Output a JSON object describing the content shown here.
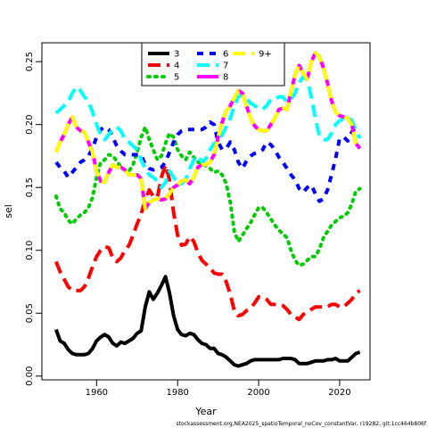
{
  "chart_data": {
    "type": "line",
    "xlabel": "Year",
    "ylabel": "sel",
    "xlim": [
      1946.5,
      2027.5
    ],
    "ylim": [
      -0.003,
      0.265
    ],
    "x_ticks": [
      1960,
      1980,
      2000,
      2020
    ],
    "y_ticks": [
      0.0,
      0.05,
      0.1,
      0.15,
      0.2,
      0.25
    ],
    "y_tick_labels": [
      "0.00",
      "0.05",
      "0.10",
      "0.15",
      "0.20",
      "0.25"
    ],
    "legend_position": "top-center",
    "grid": false,
    "footnote": "stockassessment.org,NEA2025_spatioTemporal_noCov_constantVar, r19282, git:1cc464b806f",
    "series": [
      {
        "name": "3",
        "color": "#000000",
        "dash": "solid",
        "x": [
          1950,
          1951,
          1952,
          1953,
          1954,
          1955,
          1956,
          1957,
          1958,
          1959,
          1960,
          1961,
          1962,
          1963,
          1964,
          1965,
          1966,
          1967,
          1968,
          1969,
          1970,
          1971,
          1972,
          1973,
          1974,
          1975,
          1976,
          1977,
          1978,
          1979,
          1980,
          1981,
          1982,
          1983,
          1984,
          1985,
          1986,
          1987,
          1988,
          1989,
          1990,
          1991,
          1992,
          1993,
          1994,
          1995,
          1996,
          1997,
          1998,
          1999,
          2000,
          2001,
          2002,
          2003,
          2004,
          2005,
          2006,
          2007,
          2008,
          2009,
          2010,
          2011,
          2012,
          2013,
          2014,
          2015,
          2016,
          2017,
          2018,
          2019,
          2020,
          2021,
          2022,
          2023,
          2024,
          2025
        ],
        "y": [
          0.037,
          0.028,
          0.026,
          0.021,
          0.018,
          0.017,
          0.017,
          0.017,
          0.018,
          0.022,
          0.028,
          0.031,
          0.033,
          0.031,
          0.026,
          0.024,
          0.027,
          0.026,
          0.028,
          0.03,
          0.034,
          0.036,
          0.055,
          0.067,
          0.061,
          0.066,
          0.072,
          0.079,
          0.066,
          0.048,
          0.037,
          0.033,
          0.032,
          0.034,
          0.033,
          0.029,
          0.026,
          0.025,
          0.022,
          0.022,
          0.018,
          0.017,
          0.015,
          0.012,
          0.009,
          0.008,
          0.009,
          0.01,
          0.012,
          0.013,
          0.013,
          0.013,
          0.013,
          0.013,
          0.013,
          0.013,
          0.014,
          0.014,
          0.014,
          0.013,
          0.01,
          0.01,
          0.01,
          0.011,
          0.012,
          0.012,
          0.012,
          0.013,
          0.013,
          0.014,
          0.012,
          0.012,
          0.012,
          0.015,
          0.018,
          0.019
        ]
      },
      {
        "name": "4",
        "color": "#ff0000",
        "dash": "long",
        "x": [
          1950,
          1951,
          1952,
          1953,
          1954,
          1955,
          1956,
          1957,
          1958,
          1959,
          1960,
          1961,
          1962,
          1963,
          1964,
          1965,
          1966,
          1967,
          1968,
          1969,
          1970,
          1971,
          1972,
          1973,
          1974,
          1975,
          1976,
          1977,
          1978,
          1979,
          1980,
          1981,
          1982,
          1983,
          1984,
          1985,
          1986,
          1987,
          1988,
          1989,
          1990,
          1991,
          1992,
          1993,
          1994,
          1995,
          1996,
          1997,
          1998,
          1999,
          2000,
          2001,
          2002,
          2003,
          2004,
          2005,
          2006,
          2007,
          2008,
          2009,
          2010,
          2011,
          2012,
          2013,
          2014,
          2015,
          2016,
          2017,
          2018,
          2019,
          2020,
          2021,
          2022,
          2023,
          2024,
          2025
        ],
        "y": [
          0.091,
          0.083,
          0.077,
          0.071,
          0.068,
          0.068,
          0.068,
          0.071,
          0.078,
          0.087,
          0.095,
          0.1,
          0.103,
          0.102,
          0.094,
          0.091,
          0.094,
          0.1,
          0.104,
          0.112,
          0.121,
          0.129,
          0.14,
          0.148,
          0.143,
          0.142,
          0.158,
          0.168,
          0.156,
          0.13,
          0.112,
          0.104,
          0.105,
          0.111,
          0.107,
          0.098,
          0.092,
          0.089,
          0.086,
          0.082,
          0.081,
          0.081,
          0.075,
          0.065,
          0.052,
          0.048,
          0.049,
          0.052,
          0.054,
          0.058,
          0.063,
          0.063,
          0.061,
          0.057,
          0.057,
          0.057,
          0.056,
          0.053,
          0.049,
          0.047,
          0.045,
          0.049,
          0.051,
          0.053,
          0.055,
          0.055,
          0.055,
          0.055,
          0.057,
          0.057,
          0.055,
          0.055,
          0.058,
          0.061,
          0.066,
          0.068
        ]
      },
      {
        "name": "5",
        "color": "#00cd00",
        "dash": "dotted",
        "x": [
          1950,
          1951,
          1952,
          1953,
          1954,
          1955,
          1956,
          1957,
          1958,
          1959,
          1960,
          1961,
          1962,
          1963,
          1964,
          1965,
          1966,
          1967,
          1968,
          1969,
          1970,
          1971,
          1972,
          1973,
          1974,
          1975,
          1976,
          1977,
          1978,
          1979,
          1980,
          1981,
          1982,
          1983,
          1984,
          1985,
          1986,
          1987,
          1988,
          1989,
          1990,
          1991,
          1992,
          1993,
          1994,
          1995,
          1996,
          1997,
          1998,
          1999,
          2000,
          2001,
          2002,
          2003,
          2004,
          2005,
          2006,
          2007,
          2008,
          2009,
          2010,
          2011,
          2012,
          2013,
          2014,
          2015,
          2016,
          2017,
          2018,
          2019,
          2020,
          2021,
          2022,
          2023,
          2024,
          2025
        ],
        "y": [
          0.143,
          0.133,
          0.13,
          0.124,
          0.121,
          0.125,
          0.128,
          0.13,
          0.134,
          0.142,
          0.158,
          0.17,
          0.172,
          0.176,
          0.175,
          0.171,
          0.166,
          0.164,
          0.163,
          0.168,
          0.178,
          0.19,
          0.198,
          0.188,
          0.18,
          0.172,
          0.175,
          0.185,
          0.193,
          0.19,
          0.18,
          0.175,
          0.172,
          0.178,
          0.174,
          0.17,
          0.17,
          0.167,
          0.165,
          0.162,
          0.163,
          0.16,
          0.153,
          0.138,
          0.115,
          0.107,
          0.112,
          0.117,
          0.122,
          0.128,
          0.134,
          0.134,
          0.13,
          0.125,
          0.12,
          0.116,
          0.113,
          0.11,
          0.1,
          0.092,
          0.088,
          0.089,
          0.092,
          0.095,
          0.095,
          0.101,
          0.11,
          0.115,
          0.12,
          0.123,
          0.126,
          0.127,
          0.13,
          0.137,
          0.147,
          0.149
        ]
      },
      {
        "name": "6",
        "color": "#0000ff",
        "dash": "dashed",
        "x": [
          1950,
          1951,
          1952,
          1953,
          1954,
          1955,
          1956,
          1957,
          1958,
          1959,
          1960,
          1961,
          1962,
          1963,
          1964,
          1965,
          1966,
          1967,
          1968,
          1969,
          1970,
          1971,
          1972,
          1973,
          1974,
          1975,
          1976,
          1977,
          1978,
          1979,
          1980,
          1981,
          1982,
          1983,
          1984,
          1985,
          1986,
          1987,
          1988,
          1989,
          1990,
          1991,
          1992,
          1993,
          1994,
          1995,
          1996,
          1997,
          1998,
          1999,
          2000,
          2001,
          2002,
          2003,
          2004,
          2005,
          2006,
          2007,
          2008,
          2009,
          2010,
          2011,
          2012,
          2013,
          2014,
          2015,
          2016,
          2017,
          2018,
          2019,
          2020,
          2021,
          2022,
          2023,
          2024,
          2025
        ],
        "y": [
          0.17,
          0.166,
          0.163,
          0.158,
          0.162,
          0.166,
          0.17,
          0.172,
          0.175,
          0.181,
          0.19,
          0.196,
          0.198,
          0.196,
          0.19,
          0.183,
          0.179,
          0.176,
          0.176,
          0.176,
          0.176,
          0.176,
          0.168,
          0.165,
          0.164,
          0.165,
          0.166,
          0.17,
          0.178,
          0.186,
          0.192,
          0.195,
          0.196,
          0.196,
          0.196,
          0.196,
          0.196,
          0.198,
          0.202,
          0.2,
          0.186,
          0.18,
          0.181,
          0.186,
          0.18,
          0.17,
          0.165,
          0.171,
          0.175,
          0.177,
          0.178,
          0.18,
          0.186,
          0.184,
          0.18,
          0.174,
          0.17,
          0.165,
          0.16,
          0.156,
          0.149,
          0.146,
          0.15,
          0.152,
          0.145,
          0.139,
          0.141,
          0.148,
          0.16,
          0.173,
          0.189,
          0.19,
          0.187,
          0.194,
          0.198,
          0.198
        ]
      },
      {
        "name": "7",
        "color": "#00ffff",
        "dash": "longdash",
        "x": [
          1950,
          1951,
          1952,
          1953,
          1954,
          1955,
          1956,
          1957,
          1958,
          1959,
          1960,
          1961,
          1962,
          1963,
          1964,
          1965,
          1966,
          1967,
          1968,
          1969,
          1970,
          1971,
          1972,
          1973,
          1974,
          1975,
          1976,
          1977,
          1978,
          1979,
          1980,
          1981,
          1982,
          1983,
          1984,
          1985,
          1986,
          1987,
          1988,
          1989,
          1990,
          1991,
          1992,
          1993,
          1994,
          1995,
          1996,
          1997,
          1998,
          1999,
          2000,
          2001,
          2002,
          2003,
          2004,
          2005,
          2006,
          2007,
          2008,
          2009,
          2010,
          2011,
          2012,
          2013,
          2014,
          2015,
          2016,
          2017,
          2018,
          2019,
          2020,
          2021,
          2022,
          2023,
          2024,
          2025
        ],
        "y": [
          0.209,
          0.212,
          0.215,
          0.218,
          0.225,
          0.23,
          0.227,
          0.222,
          0.218,
          0.21,
          0.2,
          0.192,
          0.188,
          0.192,
          0.196,
          0.198,
          0.195,
          0.188,
          0.186,
          0.183,
          0.18,
          0.172,
          0.165,
          0.16,
          0.158,
          0.155,
          0.15,
          0.154,
          0.163,
          0.158,
          0.153,
          0.153,
          0.156,
          0.165,
          0.172,
          0.175,
          0.17,
          0.173,
          0.18,
          0.185,
          0.186,
          0.192,
          0.198,
          0.205,
          0.215,
          0.222,
          0.224,
          0.221,
          0.217,
          0.215,
          0.213,
          0.212,
          0.215,
          0.22,
          0.22,
          0.222,
          0.222,
          0.218,
          0.22,
          0.225,
          0.233,
          0.238,
          0.236,
          0.222,
          0.205,
          0.191,
          0.188,
          0.188,
          0.193,
          0.2,
          0.203,
          0.205,
          0.206,
          0.203,
          0.196,
          0.189
        ]
      },
      {
        "name": "8",
        "color": "#ff00ff",
        "dash": "solid",
        "x": [
          1950,
          1951,
          1952,
          1953,
          1954,
          1955,
          1956,
          1957,
          1958,
          1959,
          1960,
          1961,
          1962,
          1963,
          1964,
          1965,
          1966,
          1967,
          1968,
          1969,
          1970,
          1971,
          1972,
          1973,
          1974,
          1975,
          1976,
          1977,
          1978,
          1979,
          1980,
          1981,
          1982,
          1983,
          1984,
          1985,
          1986,
          1987,
          1988,
          1989,
          1990,
          1991,
          1992,
          1993,
          1994,
          1995,
          1996,
          1997,
          1998,
          1999,
          2000,
          2001,
          2002,
          2003,
          2004,
          2005,
          2006,
          2007,
          2008,
          2009,
          2010,
          2011,
          2012,
          2013,
          2014,
          2015,
          2016,
          2017,
          2018,
          2019,
          2020,
          2021,
          2022,
          2023,
          2024,
          2025
        ],
        "y": [
          0.178,
          0.186,
          0.192,
          0.2,
          0.206,
          0.198,
          0.195,
          0.194,
          0.186,
          0.178,
          0.163,
          0.155,
          0.154,
          0.162,
          0.168,
          0.166,
          0.166,
          0.164,
          0.16,
          0.16,
          0.16,
          0.157,
          0.133,
          0.138,
          0.14,
          0.141,
          0.14,
          0.141,
          0.145,
          0.15,
          0.152,
          0.155,
          0.156,
          0.153,
          0.158,
          0.166,
          0.168,
          0.168,
          0.17,
          0.176,
          0.19,
          0.202,
          0.211,
          0.215,
          0.221,
          0.227,
          0.225,
          0.215,
          0.205,
          0.199,
          0.196,
          0.195,
          0.195,
          0.2,
          0.205,
          0.212,
          0.213,
          0.212,
          0.226,
          0.24,
          0.247,
          0.241,
          0.236,
          0.25,
          0.257,
          0.254,
          0.245,
          0.233,
          0.219,
          0.21,
          0.207,
          0.206,
          0.205,
          0.2,
          0.185,
          0.181
        ]
      },
      {
        "name": "9+",
        "color": "#ffff00",
        "dash": "longdash",
        "x": [
          1950,
          1951,
          1952,
          1953,
          1954,
          1955,
          1956,
          1957,
          1958,
          1959,
          1960,
          1961,
          1962,
          1963,
          1964,
          1965,
          1966,
          1967,
          1968,
          1969,
          1970,
          1971,
          1972,
          1973,
          1974,
          1975,
          1976,
          1977,
          1978,
          1979,
          1980,
          1981,
          1982,
          1983,
          1984,
          1985,
          1986,
          1987,
          1988,
          1989,
          1990,
          1991,
          1992,
          1993,
          1994,
          1995,
          1996,
          1997,
          1998,
          1999,
          2000,
          2001,
          2002,
          2003,
          2004,
          2005,
          2006,
          2007,
          2008,
          2009,
          2010,
          2011,
          2012,
          2013,
          2014,
          2015,
          2016,
          2017,
          2018,
          2019,
          2020,
          2021,
          2022,
          2023,
          2024,
          2025
        ],
        "y": [
          0.178,
          0.186,
          0.192,
          0.2,
          0.206,
          0.198,
          0.195,
          0.194,
          0.186,
          0.178,
          0.163,
          0.155,
          0.154,
          0.162,
          0.168,
          0.166,
          0.166,
          0.164,
          0.16,
          0.16,
          0.16,
          0.157,
          0.133,
          0.138,
          0.14,
          0.141,
          0.14,
          0.141,
          0.145,
          0.15,
          0.152,
          0.155,
          0.156,
          0.153,
          0.158,
          0.166,
          0.168,
          0.168,
          0.17,
          0.176,
          0.19,
          0.202,
          0.211,
          0.215,
          0.221,
          0.227,
          0.225,
          0.215,
          0.205,
          0.199,
          0.196,
          0.195,
          0.195,
          0.2,
          0.205,
          0.212,
          0.213,
          0.212,
          0.226,
          0.24,
          0.247,
          0.241,
          0.236,
          0.25,
          0.257,
          0.254,
          0.245,
          0.233,
          0.219,
          0.21,
          0.207,
          0.206,
          0.205,
          0.2,
          0.185,
          0.181
        ]
      }
    ]
  }
}
